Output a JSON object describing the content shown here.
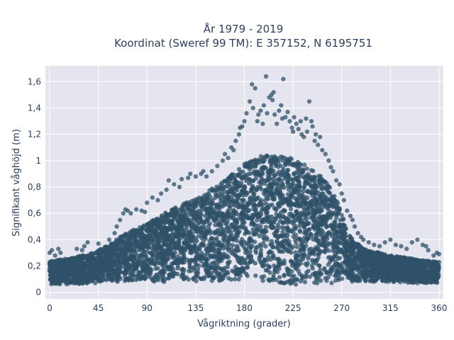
{
  "chart_data": {
    "type": "scatter",
    "title_line1": "År 1979 - 2019",
    "title_line2": "Koordinat (Sweref 99 TM): E 357152, N 6195751",
    "xlabel": "Vågriktning (grader)",
    "ylabel": "Signifikant våghöjd (m)",
    "xlim": [
      -4,
      364
    ],
    "ylim": [
      -0.05,
      1.72
    ],
    "x_ticks": [
      0,
      45,
      90,
      135,
      180,
      225,
      270,
      315,
      360
    ],
    "x_tick_labels": [
      "0",
      "45",
      "90",
      "135",
      "180",
      "225",
      "270",
      "315",
      "360"
    ],
    "y_ticks": [
      0,
      0.2,
      0.4,
      0.6,
      0.8,
      1.0,
      1.2,
      1.4,
      1.6
    ],
    "y_tick_labels": [
      "0",
      "0,2",
      "0,4",
      "0,6",
      "0,8",
      "1",
      "1,2",
      "1,4",
      "1,6"
    ],
    "grid": true,
    "colors": {
      "marker": "#2f5168",
      "plot_bg": "#e5e5ef",
      "grid": "#ffffff",
      "text": "#2a3f5f"
    },
    "envelope": {
      "direction": [
        0,
        20,
        40,
        55,
        70,
        90,
        110,
        135,
        160,
        180,
        200,
        225,
        250,
        265,
        275,
        290,
        315,
        340,
        360
      ],
      "upper_height": [
        0.24,
        0.26,
        0.3,
        0.36,
        0.45,
        0.52,
        0.62,
        0.72,
        0.84,
        0.98,
        1.05,
        1.02,
        0.9,
        0.74,
        0.46,
        0.33,
        0.28,
        0.25,
        0.23
      ],
      "lower_height": [
        0.06,
        0.06,
        0.07,
        0.07,
        0.08,
        0.08,
        0.08,
        0.08,
        0.09,
        0.1,
        0.08,
        0.06,
        0.06,
        0.07,
        0.08,
        0.08,
        0.08,
        0.07,
        0.06
      ]
    },
    "series": [
      {
        "x": [
          0,
          2,
          5,
          8,
          10,
          25,
          30,
          32,
          35,
          45,
          55,
          60,
          62,
          65,
          68,
          70,
          72,
          75,
          80,
          85,
          88,
          90,
          95,
          100,
          103,
          108,
          110,
          115,
          120,
          122,
          128,
          130,
          135,
          140,
          142,
          145,
          150,
          155,
          160,
          162,
          165,
          168,
          170,
          172,
          175,
          176,
          178,
          180,
          182,
          185,
          187,
          188,
          190,
          192,
          193,
          195,
          197,
          198,
          200,
          201,
          203,
          205,
          206,
          207,
          208,
          210,
          212,
          214,
          215,
          216,
          218,
          220,
          222,
          224,
          225,
          226,
          228,
          230,
          232,
          233,
          235,
          237,
          238,
          240,
          242,
          243,
          245,
          246,
          248,
          250,
          252,
          255,
          258,
          260,
          262,
          265,
          268,
          270,
          272,
          275,
          278,
          280,
          282,
          285,
          288,
          290,
          295,
          300,
          305,
          310,
          315,
          320,
          325,
          330,
          335,
          340,
          345,
          348,
          350,
          355,
          358,
          360
        ],
        "y": [
          0.3,
          0.32,
          0.28,
          0.33,
          0.3,
          0.33,
          0.32,
          0.35,
          0.38,
          0.37,
          0.4,
          0.45,
          0.5,
          0.55,
          0.6,
          0.63,
          0.62,
          0.6,
          0.63,
          0.62,
          0.61,
          0.68,
          0.72,
          0.7,
          0.75,
          0.78,
          0.85,
          0.82,
          0.8,
          0.86,
          0.87,
          0.9,
          0.88,
          0.9,
          0.92,
          0.88,
          0.92,
          0.96,
          1.0,
          1.05,
          1.02,
          1.1,
          1.08,
          1.15,
          1.2,
          1.25,
          1.26,
          1.3,
          1.36,
          1.45,
          1.58,
          1.4,
          1.55,
          1.3,
          1.35,
          1.38,
          1.28,
          1.42,
          1.64,
          1.36,
          1.48,
          1.5,
          1.46,
          1.52,
          1.35,
          1.28,
          1.38,
          1.42,
          1.32,
          1.62,
          1.33,
          1.37,
          1.3,
          1.25,
          1.22,
          1.33,
          1.28,
          1.24,
          1.3,
          1.2,
          1.18,
          1.32,
          1.22,
          1.45,
          1.3,
          1.26,
          1.15,
          1.2,
          1.12,
          1.18,
          1.08,
          1.05,
          1.0,
          0.95,
          0.92,
          0.85,
          0.82,
          0.75,
          0.7,
          0.62,
          0.58,
          0.55,
          0.5,
          0.45,
          0.42,
          0.4,
          0.38,
          0.36,
          0.35,
          0.38,
          0.4,
          0.36,
          0.35,
          0.33,
          0.38,
          0.4,
          0.36,
          0.35,
          0.32,
          0.28,
          0.3,
          0.29
        ]
      }
    ]
  }
}
